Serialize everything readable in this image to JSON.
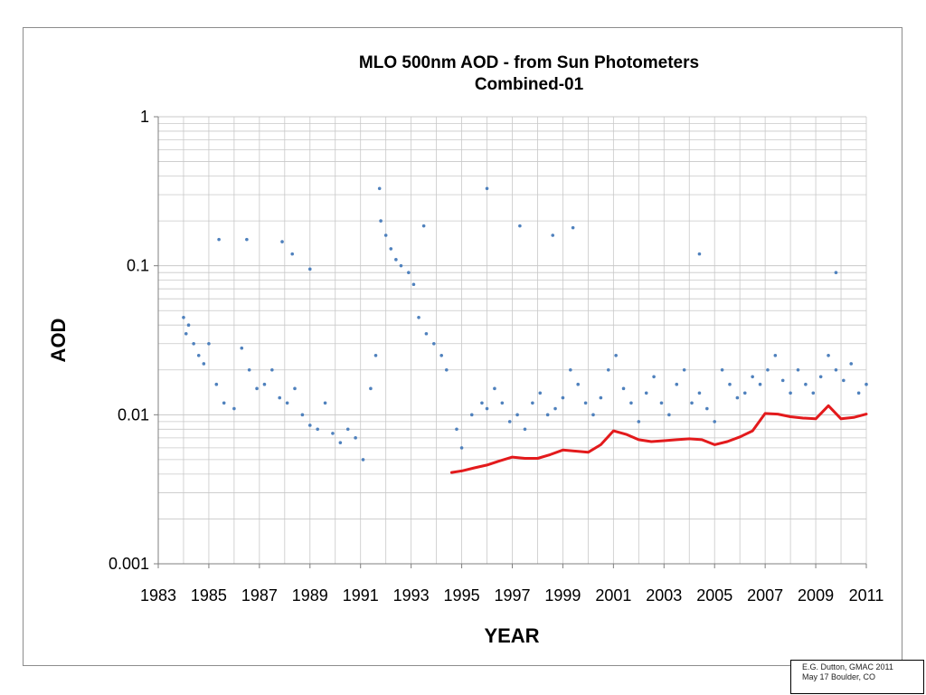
{
  "chart_data": {
    "type": "scatter",
    "title": "MLO 500nm AOD - from Sun Photometers",
    "subtitle": "Combined-01",
    "xlabel": "YEAR",
    "ylabel": "AOD",
    "yscale": "log",
    "xlim": [
      1983,
      2011
    ],
    "ylim": [
      0.001,
      1
    ],
    "grid": true,
    "x_ticks": [
      "1983",
      "1985",
      "1987",
      "1989",
      "1991",
      "1993",
      "1995",
      "1997",
      "1999",
      "2001",
      "2003",
      "2005",
      "2007",
      "2009",
      "2011"
    ],
    "y_ticks": [
      "0.001",
      "0.01",
      "0.1",
      "1"
    ],
    "colors": {
      "points": "#4f81bd",
      "baseline": "#e31a1c",
      "grid": "#c8c8c8"
    },
    "series": [
      {
        "kind": "points",
        "x": [
          1984.0,
          1984.1,
          1984.2,
          1984.4,
          1984.6,
          1984.8,
          1985.0,
          1985.3,
          1985.6,
          1986.0,
          1986.3,
          1986.6,
          1986.9,
          1987.2,
          1987.5,
          1987.8,
          1988.1,
          1988.4,
          1988.7,
          1989.0,
          1989.3,
          1989.6,
          1989.9,
          1990.2,
          1990.5,
          1990.8,
          1991.1,
          1991.4,
          1991.6,
          1991.8,
          1992.0,
          1992.2,
          1992.4,
          1992.6,
          1992.9,
          1993.1,
          1993.3,
          1993.6,
          1993.9,
          1994.2,
          1994.4,
          1994.8,
          1995.0,
          1995.4,
          1995.8,
          1996.0,
          1996.3,
          1996.6,
          1996.9,
          1997.2,
          1997.5,
          1997.8,
          1998.1,
          1998.4,
          1998.7,
          1999.0,
          1999.3,
          1999.6,
          1999.9,
          2000.2,
          2000.5,
          2000.8,
          2001.1,
          2001.4,
          2001.7,
          2002.0,
          2002.3,
          2002.6,
          2002.9,
          2003.2,
          2003.5,
          2003.8,
          2004.1,
          2004.4,
          2004.7,
          2005.0,
          2005.3,
          2005.6,
          2005.9,
          2006.2,
          2006.5,
          2006.8,
          2007.1,
          2007.4,
          2007.7,
          2008.0,
          2008.3,
          2008.6,
          2008.9,
          2009.2,
          2009.5,
          2009.8,
          2010.1,
          2010.4,
          2010.7,
          2011.0,
          1985.4,
          1986.5,
          1987.9,
          1988.3,
          1989.0,
          1991.75,
          1993.5,
          1996.0,
          1997.3,
          1998.6,
          1999.4,
          2004.4,
          2009.8
        ],
        "y": [
          0.045,
          0.035,
          0.04,
          0.03,
          0.025,
          0.022,
          0.03,
          0.016,
          0.012,
          0.011,
          0.028,
          0.02,
          0.015,
          0.016,
          0.02,
          0.013,
          0.012,
          0.015,
          0.01,
          0.0085,
          0.008,
          0.012,
          0.0075,
          0.0065,
          0.008,
          0.007,
          0.005,
          0.015,
          0.025,
          0.2,
          0.16,
          0.13,
          0.11,
          0.1,
          0.09,
          0.075,
          0.045,
          0.035,
          0.03,
          0.025,
          0.02,
          0.008,
          0.006,
          0.01,
          0.012,
          0.011,
          0.015,
          0.012,
          0.009,
          0.01,
          0.008,
          0.012,
          0.014,
          0.01,
          0.011,
          0.013,
          0.02,
          0.016,
          0.012,
          0.01,
          0.013,
          0.02,
          0.025,
          0.015,
          0.012,
          0.009,
          0.014,
          0.018,
          0.012,
          0.01,
          0.016,
          0.02,
          0.012,
          0.014,
          0.011,
          0.009,
          0.02,
          0.016,
          0.013,
          0.014,
          0.018,
          0.016,
          0.02,
          0.025,
          0.017,
          0.014,
          0.02,
          0.016,
          0.014,
          0.018,
          0.025,
          0.02,
          0.017,
          0.022,
          0.014,
          0.016,
          0.15,
          0.15,
          0.145,
          0.12,
          0.095,
          0.33,
          0.185,
          0.33,
          0.185,
          0.16,
          0.18,
          0.12,
          0.09
        ]
      },
      {
        "kind": "line",
        "x": [
          1994.6,
          1995.0,
          1995.5,
          1996.0,
          1996.5,
          1997.0,
          1997.5,
          1998.0,
          1998.5,
          1999.0,
          1999.5,
          2000.0,
          2000.5,
          2001.0,
          2001.5,
          2002.0,
          2002.5,
          2003.0,
          2003.5,
          2004.0,
          2004.5,
          2005.0,
          2005.5,
          2006.0,
          2006.5,
          2007.0,
          2007.5,
          2008.0,
          2008.5,
          2009.0,
          2009.5,
          2010.0,
          2010.5,
          2011.0
        ],
        "y": [
          0.0041,
          0.0042,
          0.0044,
          0.0046,
          0.0049,
          0.0052,
          0.0051,
          0.0051,
          0.0054,
          0.0058,
          0.0057,
          0.0056,
          0.0063,
          0.0078,
          0.0074,
          0.0068,
          0.0066,
          0.0067,
          0.0068,
          0.0069,
          0.0068,
          0.0063,
          0.0066,
          0.0071,
          0.0078,
          0.0102,
          0.0101,
          0.0097,
          0.0095,
          0.0094,
          0.0115,
          0.0094,
          0.0096,
          0.0101
        ]
      }
    ]
  },
  "credit": {
    "line1": "E.G. Dutton, GMAC 2011",
    "line2": "May 17  Boulder, CO"
  }
}
